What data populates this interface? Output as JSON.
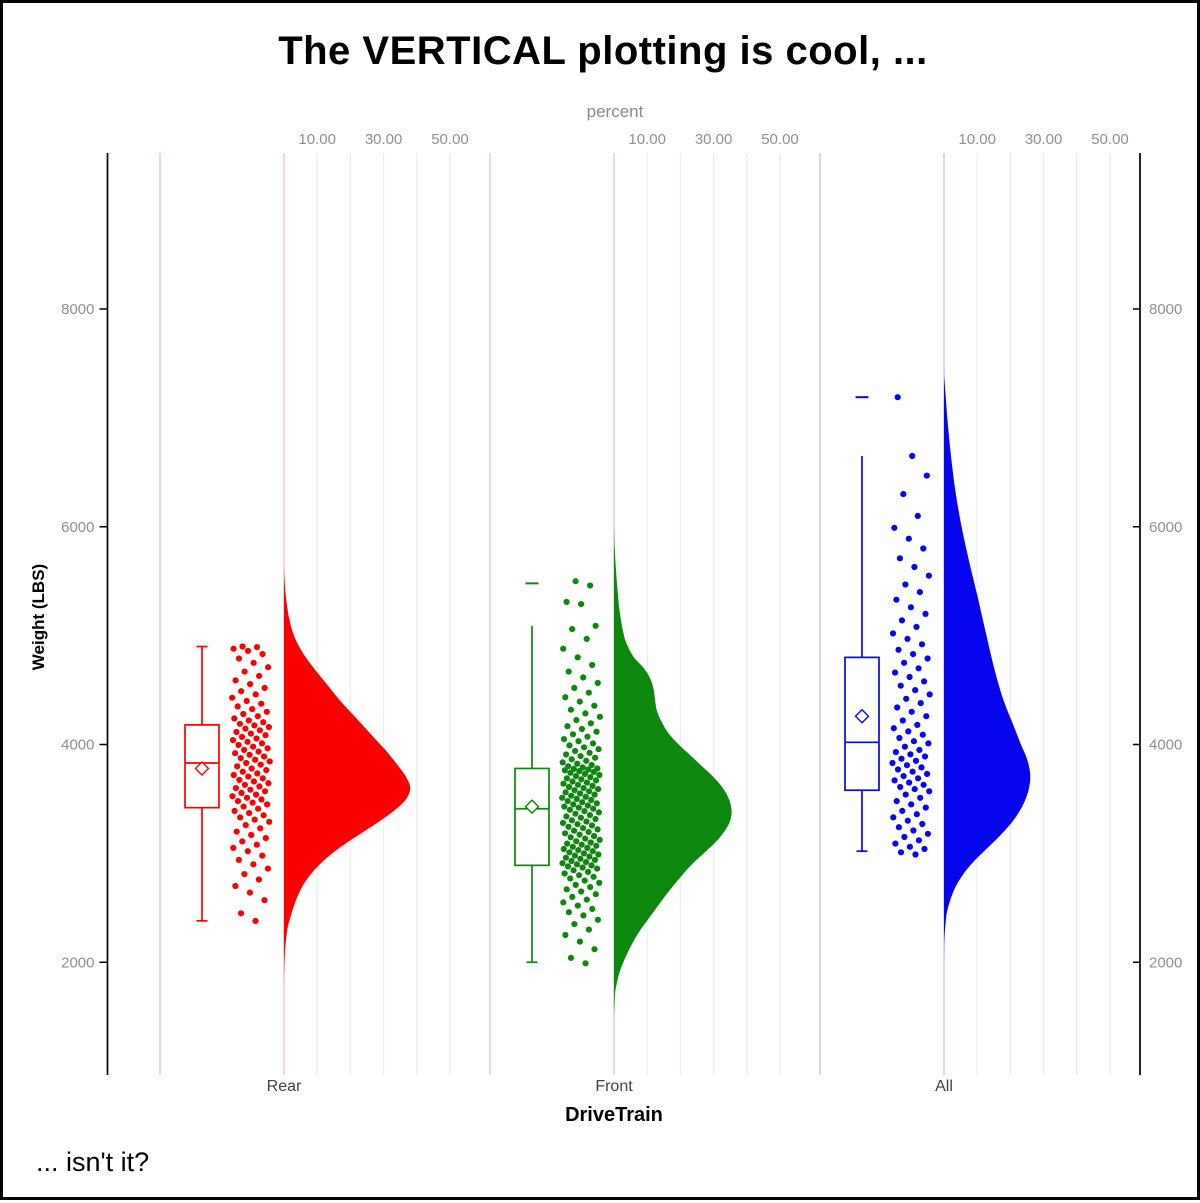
{
  "title": "The VERTICAL plotting is cool, ...",
  "footnote": "... isn't it?",
  "chart_data": {
    "type": "raincloud",
    "orientation": "vertical",
    "description": "Half-violin density (as percent) + box plot + jittered raw points of vehicle Weight by DriveTrain group",
    "top_axis": {
      "label": "percent",
      "ticks": [
        10,
        30,
        50
      ],
      "tick_labels": [
        "10.00",
        "30.00",
        "50.00"
      ],
      "grid_step_pct": 10,
      "grid_max_pct": 50
    },
    "y_axis": {
      "label": "Weight (LBS)",
      "ticks": [
        2000,
        4000,
        6000,
        8000
      ],
      "tick_labels": [
        "2000",
        "4000",
        "6000",
        "8000"
      ],
      "range": [
        960,
        9430
      ],
      "mirrored_right": true
    },
    "x_axis": {
      "label": "DriveTrain",
      "categories": [
        "Rear",
        "Front",
        "All"
      ]
    },
    "style": {
      "grid_color": "#ececec",
      "tick_label_color": "#8f8f8f",
      "category_label_color": "#404040",
      "axis_line_color": "#000000"
    },
    "groups": [
      {
        "name": "Rear",
        "color": "#fb0000",
        "pale_color": "#f6c0c0",
        "box": {
          "whisker_low": 2380,
          "q1": 3420,
          "median": 3830,
          "mean": 3780,
          "q3": 4180,
          "whisker_high": 4900,
          "cap_low": true,
          "cap_high": true,
          "outliers": []
        },
        "violin_profile": [
          [
            5600,
            0
          ],
          [
            5450,
            0.3
          ],
          [
            5300,
            0.8
          ],
          [
            5150,
            1.6
          ],
          [
            5000,
            3
          ],
          [
            4850,
            5.5
          ],
          [
            4700,
            9
          ],
          [
            4550,
            13
          ],
          [
            4400,
            17
          ],
          [
            4250,
            21.5
          ],
          [
            4100,
            26
          ],
          [
            3950,
            30.5
          ],
          [
            3800,
            34.5
          ],
          [
            3700,
            36.8
          ],
          [
            3600,
            38
          ],
          [
            3500,
            36.8
          ],
          [
            3400,
            33.5
          ],
          [
            3300,
            29
          ],
          [
            3200,
            24
          ],
          [
            3100,
            19
          ],
          [
            3000,
            14.5
          ],
          [
            2900,
            10.8
          ],
          [
            2800,
            7.8
          ],
          [
            2700,
            5.6
          ],
          [
            2600,
            4
          ],
          [
            2500,
            2.8
          ],
          [
            2400,
            1.8
          ],
          [
            2300,
            1
          ],
          [
            2100,
            0.3
          ],
          [
            1850,
            0
          ]
        ],
        "points": [
          2380,
          2450,
          2570,
          2640,
          2700,
          2760,
          2810,
          2860,
          2900,
          2940,
          2980,
          3020,
          3050,
          3080,
          3110,
          3140,
          3170,
          3200,
          3230,
          3260,
          3290,
          3310,
          3330,
          3350,
          3370,
          3390,
          3410,
          3430,
          3450,
          3465,
          3480,
          3495,
          3510,
          3525,
          3540,
          3555,
          3570,
          3585,
          3600,
          3615,
          3630,
          3645,
          3660,
          3675,
          3690,
          3705,
          3720,
          3735,
          3750,
          3765,
          3780,
          3800,
          3815,
          3830,
          3845,
          3860,
          3875,
          3890,
          3905,
          3920,
          3935,
          3950,
          3965,
          3980,
          3995,
          4010,
          4025,
          4040,
          4055,
          4070,
          4085,
          4100,
          4115,
          4130,
          4145,
          4160,
          4175,
          4190,
          4205,
          4220,
          4240,
          4260,
          4280,
          4300,
          4325,
          4350,
          4375,
          4400,
          4430,
          4460,
          4490,
          4520,
          4555,
          4590,
          4630,
          4670,
          4710,
          4750,
          4790,
          4830,
          4860,
          4880,
          4895,
          4900
        ]
      },
      {
        "name": "Front",
        "color": "#0d870d",
        "pale_color": "#c0dcc0",
        "box": {
          "whisker_low": 2000,
          "q1": 2890,
          "median": 3410,
          "mean": 3430,
          "q3": 3780,
          "whisker_high": 5090,
          "cap_low": true,
          "cap_high": false,
          "outliers": [
            5480
          ]
        },
        "violin_profile": [
          [
            6000,
            0
          ],
          [
            5800,
            0.2
          ],
          [
            5600,
            0.6
          ],
          [
            5400,
            1.1
          ],
          [
            5200,
            1.8
          ],
          [
            5000,
            3
          ],
          [
            4900,
            4.2
          ],
          [
            4800,
            6
          ],
          [
            4700,
            9
          ],
          [
            4600,
            11
          ],
          [
            4500,
            12
          ],
          [
            4400,
            12.4
          ],
          [
            4300,
            13
          ],
          [
            4200,
            14.5
          ],
          [
            4100,
            16.5
          ],
          [
            4000,
            19.5
          ],
          [
            3900,
            23
          ],
          [
            3800,
            26.5
          ],
          [
            3700,
            30
          ],
          [
            3600,
            32.8
          ],
          [
            3500,
            34.6
          ],
          [
            3400,
            35.4
          ],
          [
            3300,
            35
          ],
          [
            3200,
            33.2
          ],
          [
            3100,
            30.5
          ],
          [
            3000,
            27
          ],
          [
            2900,
            23.5
          ],
          [
            2800,
            20.5
          ],
          [
            2700,
            17.8
          ],
          [
            2600,
            15.2
          ],
          [
            2500,
            12.8
          ],
          [
            2400,
            10.4
          ],
          [
            2300,
            8
          ],
          [
            2200,
            6
          ],
          [
            2100,
            4.3
          ],
          [
            2000,
            2.8
          ],
          [
            1900,
            1.6
          ],
          [
            1800,
            0.8
          ],
          [
            1700,
            0.3
          ],
          [
            1500,
            0
          ]
        ],
        "points": [
          1990,
          2040,
          2120,
          2190,
          2250,
          2300,
          2350,
          2390,
          2430,
          2460,
          2490,
          2520,
          2550,
          2575,
          2600,
          2625,
          2650,
          2670,
          2690,
          2710,
          2730,
          2750,
          2770,
          2785,
          2800,
          2815,
          2830,
          2845,
          2860,
          2870,
          2880,
          2890,
          2900,
          2910,
          2920,
          2930,
          2940,
          2950,
          2960,
          2970,
          2980,
          2990,
          3000,
          3010,
          3020,
          3030,
          3040,
          3050,
          3060,
          3070,
          3080,
          3090,
          3100,
          3112,
          3124,
          3136,
          3148,
          3160,
          3172,
          3184,
          3196,
          3208,
          3220,
          3232,
          3244,
          3256,
          3268,
          3280,
          3292,
          3304,
          3316,
          3328,
          3340,
          3352,
          3364,
          3376,
          3388,
          3400,
          3410,
          3420,
          3430,
          3440,
          3450,
          3460,
          3470,
          3480,
          3490,
          3500,
          3510,
          3520,
          3530,
          3540,
          3550,
          3560,
          3570,
          3580,
          3590,
          3600,
          3610,
          3620,
          3630,
          3640,
          3650,
          3660,
          3670,
          3680,
          3690,
          3700,
          3710,
          3720,
          3730,
          3740,
          3748,
          3756,
          3763,
          3770,
          3776,
          3780,
          3790,
          3800,
          3812,
          3824,
          3836,
          3850,
          3864,
          3878,
          3893,
          3908,
          3924,
          3940,
          3957,
          3974,
          3992,
          4010,
          4030,
          4050,
          4072,
          4094,
          4118,
          4142,
          4168,
          4195,
          4224,
          4254,
          4286,
          4320,
          4356,
          4394,
          4434,
          4476,
          4520,
          4566,
          4615,
          4670,
          4730,
          4800,
          4880,
          4970,
          5060,
          5090,
          5290,
          5310,
          5460,
          5500
        ]
      },
      {
        "name": "All",
        "color": "#0606ee",
        "pale_color": "#c5c5f5",
        "box": {
          "whisker_low": 3020,
          "q1": 3580,
          "median": 4020,
          "mean": 4260,
          "q3": 4800,
          "whisker_high": 6650,
          "cap_low": true,
          "cap_high": false,
          "outliers": [
            7190
          ]
        },
        "violin_profile": [
          [
            7400,
            0
          ],
          [
            7200,
            0.5
          ],
          [
            7000,
            1
          ],
          [
            6800,
            1.6
          ],
          [
            6600,
            2.3
          ],
          [
            6400,
            3.1
          ],
          [
            6200,
            4.1
          ],
          [
            6000,
            5.3
          ],
          [
            5800,
            6.7
          ],
          [
            5600,
            8.2
          ],
          [
            5400,
            9.8
          ],
          [
            5200,
            11.3
          ],
          [
            5000,
            12.8
          ],
          [
            4800,
            14.3
          ],
          [
            4600,
            16
          ],
          [
            4400,
            18
          ],
          [
            4200,
            20.6
          ],
          [
            4000,
            23.2
          ],
          [
            3900,
            24.6
          ],
          [
            3800,
            25.6
          ],
          [
            3700,
            26
          ],
          [
            3600,
            25.6
          ],
          [
            3500,
            24.6
          ],
          [
            3400,
            23
          ],
          [
            3300,
            20.8
          ],
          [
            3200,
            18
          ],
          [
            3100,
            14.8
          ],
          [
            3000,
            11.4
          ],
          [
            2900,
            8.2
          ],
          [
            2800,
            5.6
          ],
          [
            2700,
            3.6
          ],
          [
            2600,
            2.2
          ],
          [
            2500,
            1.2
          ],
          [
            2400,
            0.6
          ],
          [
            2200,
            0.1
          ],
          [
            2000,
            0
          ]
        ],
        "points": [
          2990,
          3010,
          3040,
          3060,
          3090,
          3120,
          3150,
          3180,
          3210,
          3240,
          3270,
          3300,
          3330,
          3360,
          3390,
          3420,
          3450,
          3480,
          3510,
          3540,
          3570,
          3590,
          3610,
          3630,
          3650,
          3670,
          3690,
          3710,
          3730,
          3750,
          3770,
          3790,
          3810,
          3830,
          3850,
          3870,
          3890,
          3910,
          3930,
          3950,
          3980,
          4010,
          4030,
          4060,
          4090,
          4120,
          4150,
          4180,
          4220,
          4260,
          4300,
          4340,
          4380,
          4420,
          4460,
          4500,
          4540,
          4580,
          4620,
          4660,
          4700,
          4750,
          4790,
          4830,
          4870,
          4920,
          4970,
          5020,
          5080,
          5140,
          5200,
          5260,
          5330,
          5400,
          5470,
          5550,
          5630,
          5710,
          5800,
          5890,
          5990,
          6100,
          6300,
          6470,
          6650,
          7190
        ]
      }
    ]
  }
}
